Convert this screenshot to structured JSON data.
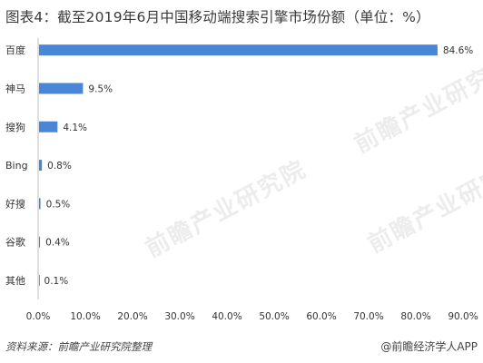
{
  "title": "图表4：截至2019年6月中国移动端搜索引擎市场份额（单位：%）",
  "source": "资料来源：前瞻产业研究院整理",
  "brand": "@前瞻经济学人APP",
  "watermark": "前瞻产业研究院",
  "colors": {
    "bar": "#4a86d8",
    "axis_line": "#bfbfbf",
    "text": "#333333"
  },
  "chart_data": {
    "type": "bar",
    "orientation": "horizontal",
    "categories": [
      "百度",
      "神马",
      "搜狗",
      "Bing",
      "好搜",
      "谷歌",
      "其他"
    ],
    "values": [
      84.6,
      9.5,
      4.1,
      0.8,
      0.5,
      0.4,
      0.1
    ],
    "value_labels": [
      "84.6%",
      "9.5%",
      "4.1%",
      "0.8%",
      "0.5%",
      "0.4%",
      "0.1%"
    ],
    "xlim": [
      0,
      90
    ],
    "x_ticks": [
      "0.0%",
      "10.0%",
      "20.0%",
      "30.0%",
      "40.0%",
      "50.0%",
      "60.0%",
      "70.0%",
      "80.0%",
      "90.0%"
    ],
    "grid": false,
    "legend": "none"
  }
}
